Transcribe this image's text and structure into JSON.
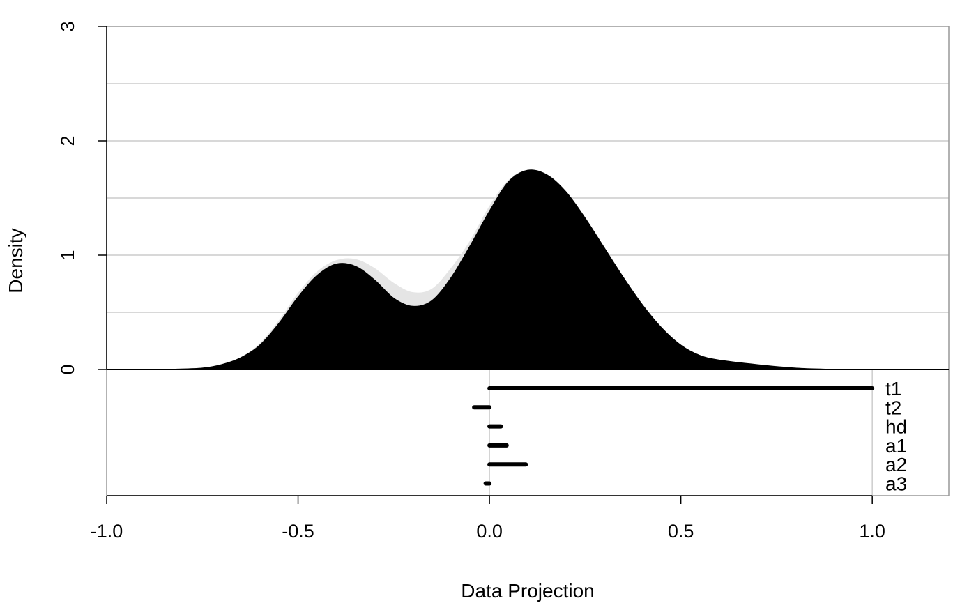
{
  "chart_data": {
    "type": "area",
    "title": "",
    "xlabel": "Data Projection",
    "ylabel": "Density",
    "xlim": [
      -1.0,
      1.2
    ],
    "ylim": [
      0,
      3
    ],
    "x_ticks": [
      -1.0,
      -0.5,
      0.0,
      0.5,
      1.0
    ],
    "x_tick_labels": [
      "-1.0",
      "-0.5",
      "0.0",
      "0.5",
      "1.0"
    ],
    "y_ticks": [
      0,
      1,
      2,
      3
    ],
    "y_tick_labels": [
      "0",
      "1",
      "2",
      "3"
    ],
    "gridlines_y": [
      0.5,
      1.0,
      1.5,
      2.0,
      2.5
    ],
    "grid": true,
    "series": [
      {
        "color": "#e5e5e5",
        "x": [
          -0.82,
          -0.75,
          -0.7,
          -0.65,
          -0.6,
          -0.55,
          -0.5,
          -0.45,
          -0.4,
          -0.35,
          -0.3,
          -0.25,
          -0.2,
          -0.15,
          -0.1,
          -0.05,
          0.0,
          0.05,
          0.1,
          0.15,
          0.2,
          0.25,
          0.3,
          0.35,
          0.4,
          0.45,
          0.5,
          0.55,
          0.6,
          0.7,
          0.8,
          0.88
        ],
        "y": [
          0.0,
          0.01,
          0.04,
          0.1,
          0.22,
          0.42,
          0.66,
          0.85,
          0.95,
          0.96,
          0.88,
          0.75,
          0.67,
          0.7,
          0.88,
          1.12,
          1.42,
          1.65,
          1.74,
          1.7,
          1.55,
          1.32,
          1.06,
          0.8,
          0.56,
          0.36,
          0.21,
          0.12,
          0.08,
          0.04,
          0.01,
          0.0
        ]
      },
      {
        "color": "#000000",
        "x": [
          -0.82,
          -0.75,
          -0.7,
          -0.65,
          -0.6,
          -0.55,
          -0.5,
          -0.45,
          -0.4,
          -0.35,
          -0.3,
          -0.25,
          -0.2,
          -0.15,
          -0.1,
          -0.05,
          0.0,
          0.05,
          0.1,
          0.15,
          0.2,
          0.25,
          0.3,
          0.35,
          0.4,
          0.45,
          0.5,
          0.55,
          0.6,
          0.7,
          0.8,
          0.88
        ],
        "y": [
          0.0,
          0.01,
          0.04,
          0.1,
          0.21,
          0.4,
          0.63,
          0.82,
          0.92,
          0.9,
          0.78,
          0.62,
          0.55,
          0.6,
          0.8,
          1.08,
          1.38,
          1.64,
          1.74,
          1.7,
          1.55,
          1.32,
          1.06,
          0.8,
          0.56,
          0.36,
          0.21,
          0.12,
          0.08,
          0.04,
          0.01,
          0.0
        ]
      }
    ],
    "axis_guides_x": [
      0.0,
      1.0
    ],
    "coefficient_bars": [
      {
        "label": "t1",
        "from": 0.0,
        "to": 1.0
      },
      {
        "label": "t2",
        "from": -0.04,
        "to": 0.0
      },
      {
        "label": "hd",
        "from": 0.0,
        "to": 0.03
      },
      {
        "label": "a1",
        "from": 0.0,
        "to": 0.045
      },
      {
        "label": "a2",
        "from": 0.0,
        "to": 0.095
      },
      {
        "label": "a3",
        "from": -0.01,
        "to": 0.0
      }
    ]
  }
}
